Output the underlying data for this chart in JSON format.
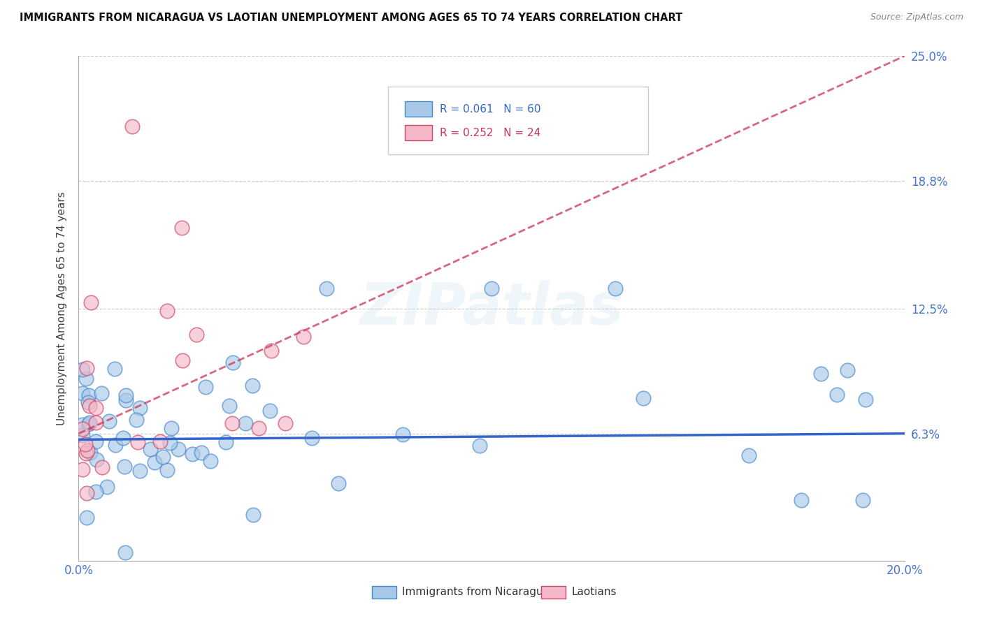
{
  "title": "IMMIGRANTS FROM NICARAGUA VS LAOTIAN UNEMPLOYMENT AMONG AGES 65 TO 74 YEARS CORRELATION CHART",
  "source": "Source: ZipAtlas.com",
  "ylabel": "Unemployment Among Ages 65 to 74 years",
  "xlim": [
    0.0,
    0.2
  ],
  "ylim": [
    0.0,
    0.25
  ],
  "xtick_vals": [
    0.0,
    0.05,
    0.1,
    0.15,
    0.2
  ],
  "xtick_labels": [
    "0.0%",
    "",
    "",
    "",
    "20.0%"
  ],
  "ytick_vals": [
    0.063,
    0.125,
    0.188,
    0.25
  ],
  "ytick_labels": [
    "6.3%",
    "12.5%",
    "18.8%",
    "25.0%"
  ],
  "legend_r1": "R = 0.061",
  "legend_n1": "N = 60",
  "legend_r2": "R = 0.252",
  "legend_n2": "N = 24",
  "legend_label1": "Immigrants from Nicaragua",
  "legend_label2": "Laotians",
  "blue_face": "#a8c8e8",
  "blue_edge": "#4488cc",
  "pink_face": "#f4b8c8",
  "pink_edge": "#cc4466",
  "blue_trend": "#3366cc",
  "pink_trend": "#cc3355",
  "watermark": "ZIPatlas",
  "blue_trend_y0": 0.06,
  "blue_trend_y1": 0.063,
  "pink_trend_y0": 0.063,
  "pink_trend_y1": 0.25
}
